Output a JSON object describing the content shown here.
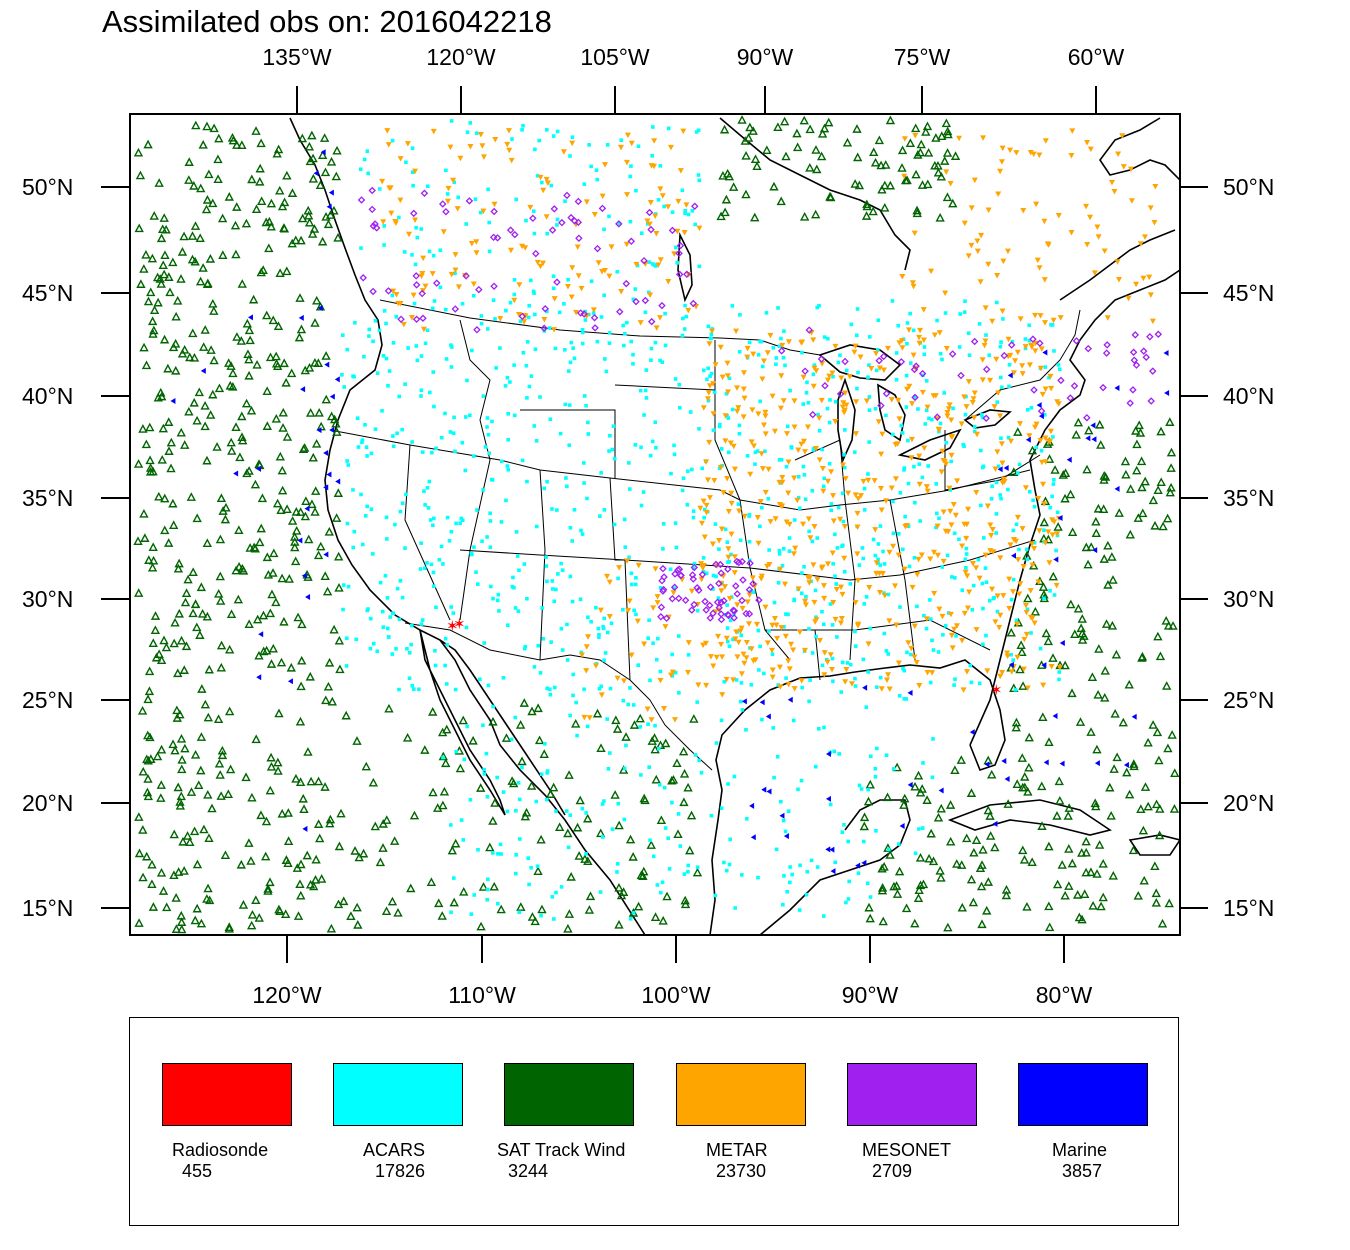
{
  "title": "Assimilated obs on: 2016042218",
  "axes": {
    "top": [
      "135°W",
      "120°W",
      "105°W",
      "90°W",
      "75°W",
      "60°W"
    ],
    "bottom": [
      "120°W",
      "110°W",
      "100°W",
      "90°W",
      "80°W"
    ],
    "left": [
      "50°N",
      "45°N",
      "40°N",
      "35°N",
      "30°N",
      "25°N",
      "20°N",
      "15°N"
    ],
    "right": [
      "50°N",
      "45°N",
      "40°N",
      "35°N",
      "30°N",
      "25°N",
      "20°N",
      "15°N"
    ]
  },
  "legend": [
    {
      "name": "Radiosonde",
      "count": "455",
      "color": "#ff0000"
    },
    {
      "name": "ACARS",
      "count": "17826",
      "color": "#00ffff"
    },
    {
      "name": "SAT Track Wind",
      "count": "3244",
      "color": "#006400"
    },
    {
      "name": "METAR",
      "count": "23730",
      "color": "#ffa500"
    },
    {
      "name": "MESONET",
      "count": "2709",
      "color": "#a020f0"
    },
    {
      "name": "Marine",
      "count": "3857",
      "color": "#0000ff"
    }
  ]
}
